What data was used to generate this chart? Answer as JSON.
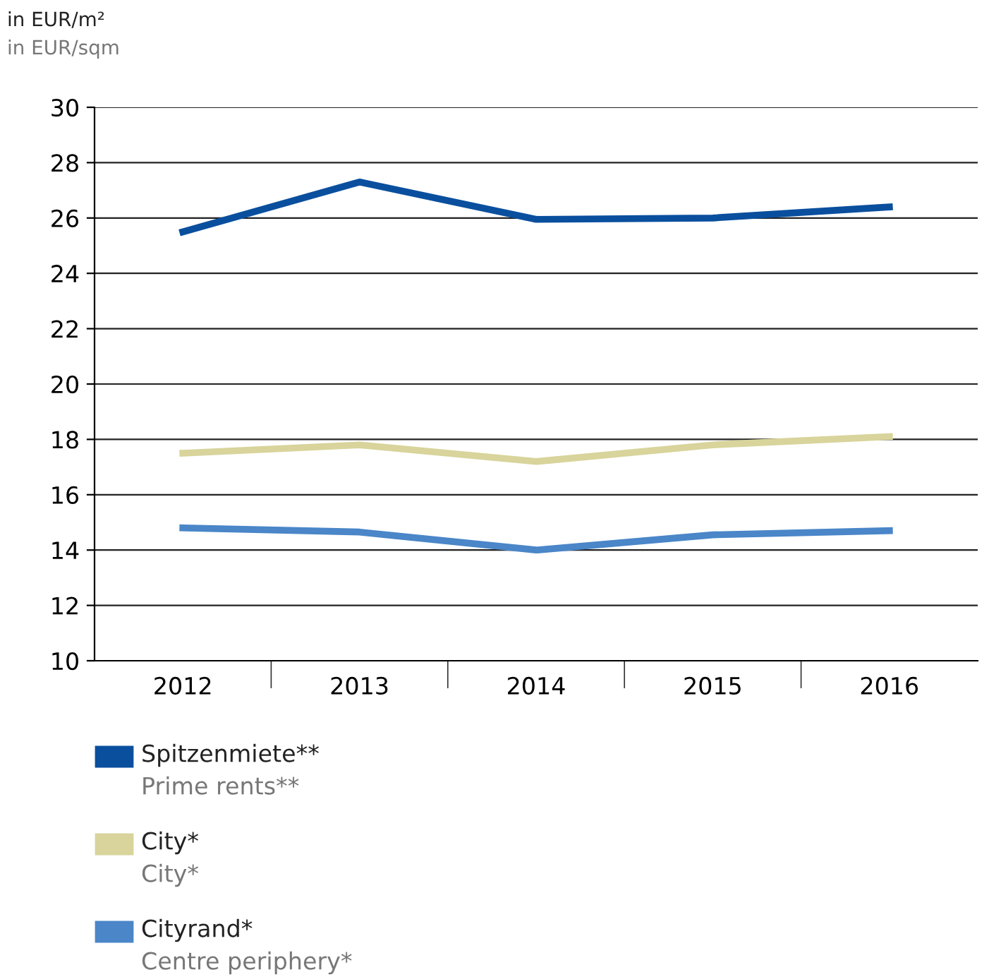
{
  "chart_data": {
    "type": "line",
    "ylabel": "in EUR/m²\nin EUR/sqm",
    "categories": [
      "2012",
      "2013",
      "2014",
      "2015",
      "2016"
    ],
    "series": [
      {
        "name": "Spitzenmiete**\nPrime rents**",
        "color": "#0a4f9e",
        "values": [
          25.5,
          27.3,
          25.95,
          26.0,
          26.4
        ]
      },
      {
        "name": "City*\nCity*",
        "color": "#d8d49b",
        "values": [
          17.5,
          17.8,
          17.2,
          17.8,
          18.1
        ]
      },
      {
        "name": "Cityrand*\nCentre periphery*",
        "color": "#4a86c8",
        "values": [
          14.8,
          14.65,
          14.0,
          14.55,
          14.7
        ]
      }
    ],
    "ylim": [
      10,
      30
    ],
    "yticks": [
      10,
      12,
      14,
      16,
      18,
      20,
      22,
      24,
      26,
      28,
      30
    ],
    "grid": "y",
    "legend": "bottom left",
    "marker": "none",
    "line_style": "solid"
  }
}
